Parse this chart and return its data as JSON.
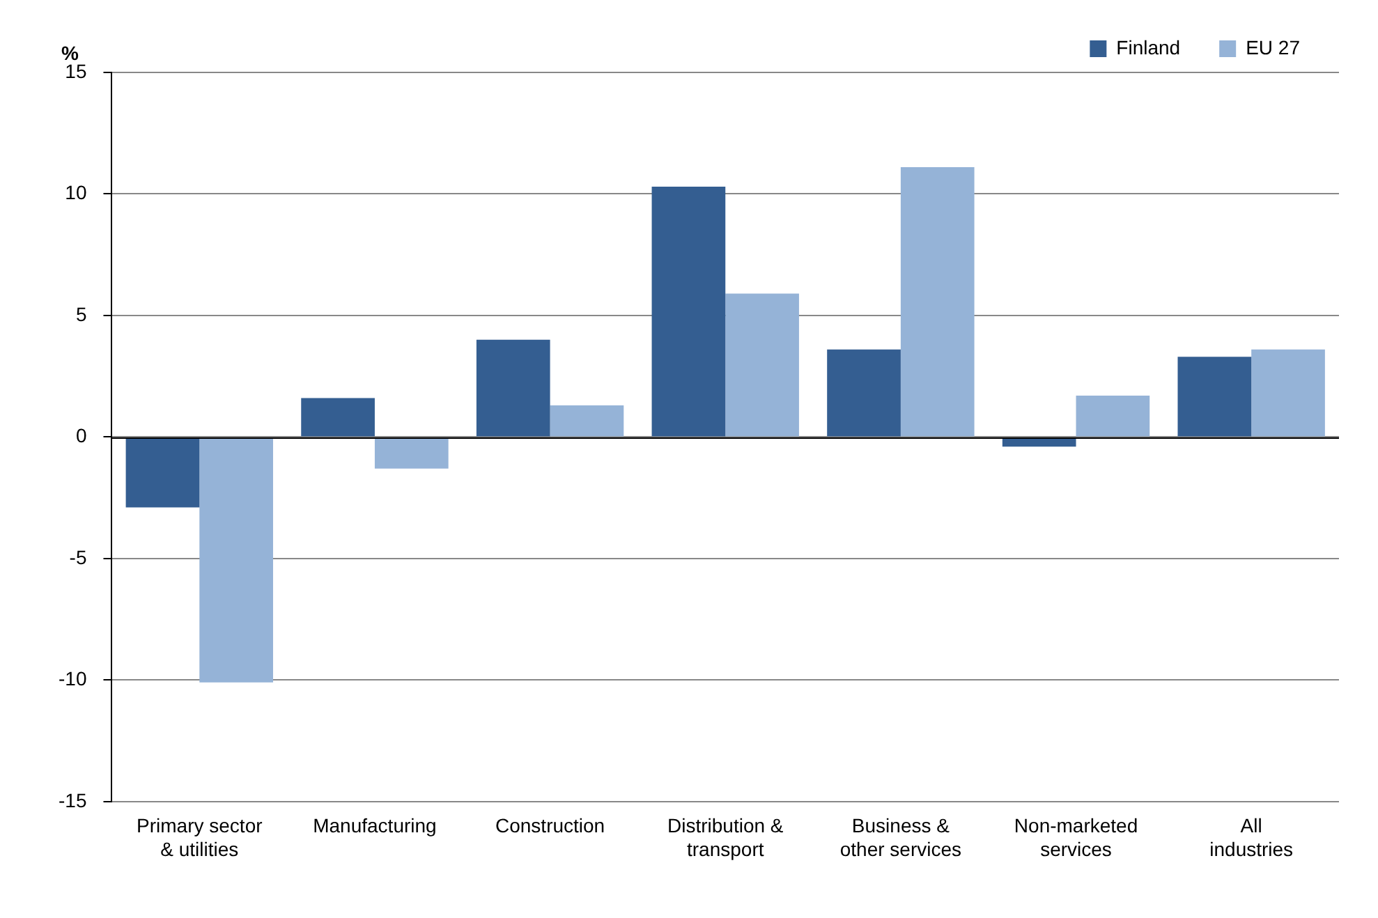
{
  "chart_data": {
    "type": "bar",
    "ylabel": "%",
    "categories": [
      "Primary sector & utilities",
      "Manufacturing",
      "Construction",
      "Distribution & transport",
      "Business & other services",
      "Non-marketed services",
      "All industries"
    ],
    "series": [
      {
        "name": "Finland",
        "color": "#345e91",
        "values": [
          -2.9,
          1.6,
          4.0,
          10.3,
          3.6,
          -0.4,
          3.3
        ]
      },
      {
        "name": "EU 27",
        "color": "#95b3d7",
        "values": [
          -10.1,
          -1.3,
          1.3,
          5.9,
          11.1,
          1.7,
          3.6
        ]
      }
    ],
    "ylim": [
      -15,
      15
    ],
    "yticks": [
      -15,
      -10,
      -5,
      0,
      5,
      10,
      15
    ],
    "grid": "y",
    "legend": "top right"
  }
}
